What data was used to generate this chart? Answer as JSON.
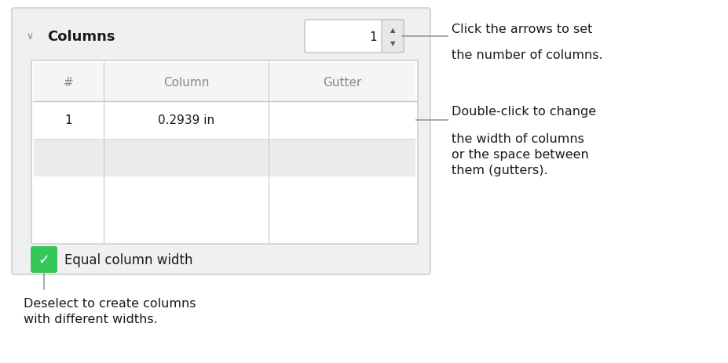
{
  "bg_color": "#ffffff",
  "panel_bg": "#f0f0f0",
  "panel_border": "#c8c8c8",
  "text_color": "#1a1a1a",
  "gray_text": "#888888",
  "line_color": "#999999",
  "table_border": "#c8c8c8",
  "checkbox_color": "#34c759",
  "title_text": "Columns",
  "spinner_value": "1",
  "row1_num": "1",
  "row1_col": "0.2939 in",
  "header_hash": "#",
  "header_col": "Column",
  "header_gutter": "Gutter",
  "checkbox_label": "Equal column width",
  "ann1_line1": "Click the arrows to set",
  "ann1_line2": "the number of columns.",
  "ann2_line1": "Double-click to change",
  "ann2_line2": "the width of columns",
  "ann2_line3": "or the space between",
  "ann2_line4": "them (gutters).",
  "ann3_line1": "Deselect to create columns",
  "ann3_line2": "with different widths."
}
